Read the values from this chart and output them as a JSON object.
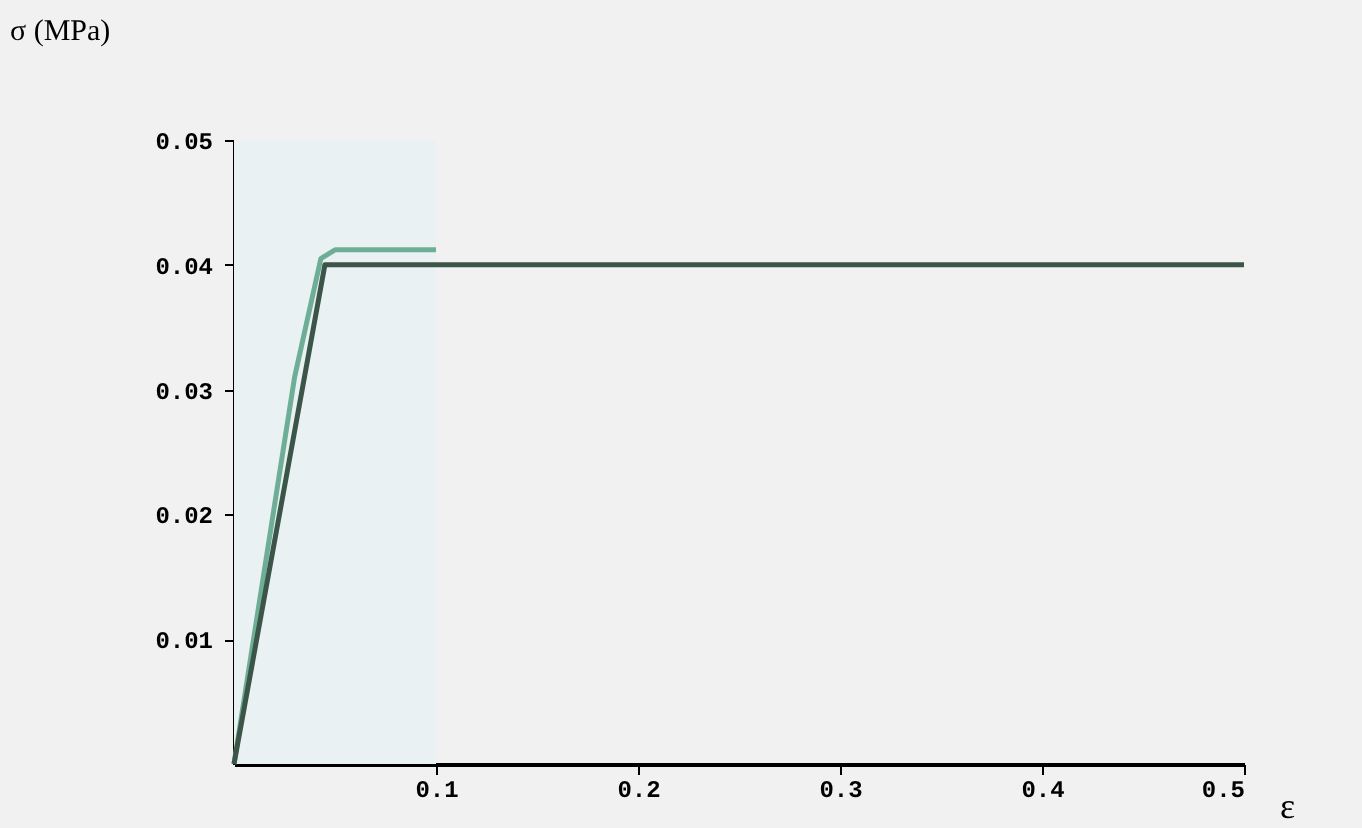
{
  "chart_data": {
    "type": "line",
    "xlabel": "ε",
    "ylabel": "σ (MPa)",
    "xlim": [
      0,
      0.5
    ],
    "ylim": [
      0,
      0.05
    ],
    "xticks": [
      0.1,
      0.2,
      0.3,
      0.4,
      0.5
    ],
    "yticks": [
      0.01,
      0.02,
      0.03,
      0.04,
      0.05
    ],
    "grid": false,
    "marker": "none",
    "line_style": "solid",
    "bands": [
      {
        "axis": "x",
        "from": 0,
        "to": 0.1,
        "color": "#eaf1f3"
      }
    ],
    "series": [
      {
        "color": "#6fae96",
        "x": [
          0,
          0.03,
          0.043,
          0.05,
          0.1
        ],
        "values": [
          0,
          0.031,
          0.0405,
          0.0412,
          0.0412
        ]
      },
      {
        "color": "#3b5548",
        "x": [
          0,
          0.045,
          0.5
        ],
        "values": [
          0,
          0.04,
          0.04
        ]
      }
    ]
  }
}
